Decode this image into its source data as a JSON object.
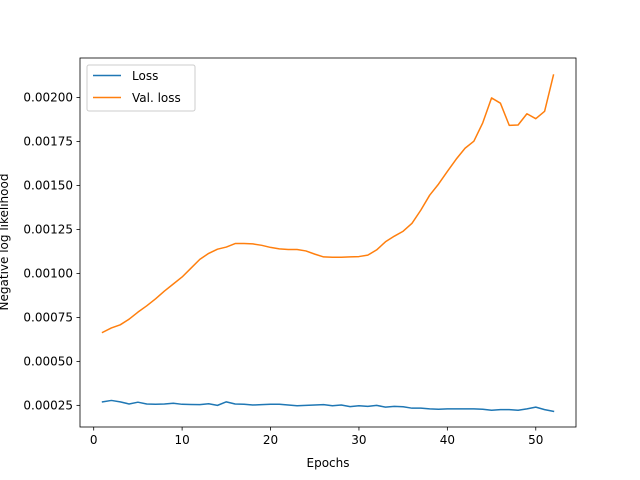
{
  "chart_data": {
    "type": "line",
    "title": "",
    "xlabel": "Epochs",
    "ylabel": "Negative log likelihood",
    "xlim": [
      -1.55,
      54.55
    ],
    "ylim": [
      0.000127,
      0.002225
    ],
    "xticks": [
      0,
      10,
      20,
      30,
      40,
      50
    ],
    "xtick_labels": [
      "0",
      "10",
      "20",
      "30",
      "40",
      "50"
    ],
    "yticks": [
      0.00025,
      0.0005,
      0.00075,
      0.001,
      0.00125,
      0.0015,
      0.00175,
      0.002
    ],
    "ytick_labels": [
      "0.00025",
      "0.00050",
      "0.00075",
      "0.00100",
      "0.00125",
      "0.00150",
      "0.00175",
      "0.00200"
    ],
    "grid": false,
    "legend_position": "upper left",
    "x": [
      1,
      2,
      3,
      4,
      5,
      6,
      7,
      8,
      9,
      10,
      11,
      12,
      13,
      14,
      15,
      16,
      17,
      18,
      19,
      20,
      21,
      22,
      23,
      24,
      25,
      26,
      27,
      28,
      29,
      30,
      31,
      32,
      33,
      34,
      35,
      36,
      37,
      38,
      39,
      40,
      41,
      42,
      43,
      44,
      45,
      46,
      47,
      48,
      49,
      50,
      51,
      52
    ],
    "series": [
      {
        "name": "Loss",
        "color": "#1f77b4",
        "values": [
          0.00027,
          0.000278,
          0.00027,
          0.000258,
          0.000268,
          0.000258,
          0.000256,
          0.000258,
          0.000262,
          0.000256,
          0.000255,
          0.000254,
          0.000259,
          0.00025,
          0.00027,
          0.000258,
          0.000256,
          0.000252,
          0.000254,
          0.000256,
          0.000256,
          0.000252,
          0.000248,
          0.00025,
          0.000252,
          0.000254,
          0.000248,
          0.000252,
          0.000243,
          0.000248,
          0.000244,
          0.00025,
          0.00024,
          0.000244,
          0.000242,
          0.000234,
          0.000234,
          0.00023,
          0.000228,
          0.00023,
          0.00023,
          0.00023,
          0.00023,
          0.000228,
          0.000222,
          0.000226,
          0.000226,
          0.000222,
          0.00023,
          0.00024,
          0.000226,
          0.000216
        ]
      },
      {
        "name": "Val. loss",
        "color": "#ff7f0e",
        "values": [
          0.000665,
          0.00069,
          0.000708,
          0.00074,
          0.00078,
          0.000816,
          0.000856,
          0.0009,
          0.00094,
          0.00098,
          0.00103,
          0.00108,
          0.001114,
          0.001138,
          0.00115,
          0.00117,
          0.00117,
          0.001168,
          0.00116,
          0.001148,
          0.00114,
          0.001136,
          0.001136,
          0.001128,
          0.00111,
          0.001094,
          0.001092,
          0.001092,
          0.001094,
          0.001096,
          0.001104,
          0.001134,
          0.00118,
          0.001212,
          0.00124,
          0.001285,
          0.00136,
          0.001445,
          0.001508,
          0.00158,
          0.00165,
          0.001712,
          0.001752,
          0.001856,
          0.001998,
          0.001968,
          0.001842,
          0.001844,
          0.001908,
          0.00188,
          0.001922,
          0.002128
        ]
      }
    ]
  }
}
